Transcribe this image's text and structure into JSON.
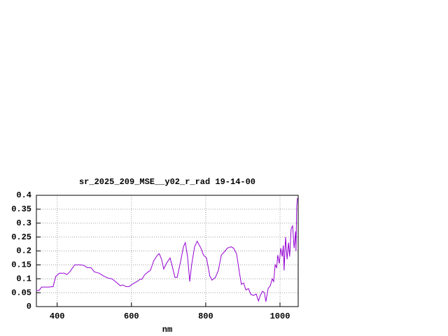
{
  "chart_data": {
    "type": "line",
    "title": "sr_2025_209_MSE__y02_r_rad 19-14-00",
    "x_label": "nm",
    "x": [
      343,
      351,
      358,
      377,
      389,
      396,
      406,
      419,
      426,
      434,
      447,
      462,
      472,
      481,
      491,
      500,
      513,
      525,
      538,
      547,
      557,
      570,
      577,
      585,
      594,
      604,
      615,
      623,
      628,
      636,
      645,
      651,
      660,
      670,
      675,
      681,
      687,
      694,
      704,
      709,
      717,
      723,
      732,
      740,
      745,
      751,
      757,
      762,
      770,
      777,
      787,
      794,
      802,
      811,
      817,
      826,
      834,
      842,
      849,
      858,
      868,
      875,
      883,
      891,
      896,
      902,
      908,
      915,
      921,
      928,
      936,
      942,
      947,
      953,
      958,
      962,
      968,
      974,
      979,
      983,
      987,
      991,
      994,
      998,
      1002,
      1006,
      1009,
      1011,
      1015,
      1019,
      1023,
      1026,
      1030,
      1034,
      1038,
      1042,
      1043,
      1045,
      1047
    ],
    "series": [
      {
        "color": "#9400d3",
        "values": [
          0.058,
          0.058,
          0.07,
          0.07,
          0.072,
          0.108,
          0.12,
          0.12,
          0.115,
          0.125,
          0.15,
          0.15,
          0.148,
          0.14,
          0.14,
          0.125,
          0.12,
          0.11,
          0.102,
          0.1,
          0.09,
          0.075,
          0.078,
          0.072,
          0.072,
          0.082,
          0.09,
          0.098,
          0.098,
          0.115,
          0.125,
          0.13,
          0.165,
          0.185,
          0.19,
          0.17,
          0.135,
          0.155,
          0.175,
          0.15,
          0.105,
          0.105,
          0.16,
          0.215,
          0.23,
          0.18,
          0.09,
          0.15,
          0.215,
          0.235,
          0.21,
          0.185,
          0.175,
          0.11,
          0.095,
          0.105,
          0.13,
          0.185,
          0.195,
          0.21,
          0.215,
          0.21,
          0.19,
          0.12,
          0.08,
          0.085,
          0.06,
          0.065,
          0.045,
          0.04,
          0.045,
          0.02,
          0.04,
          0.055,
          0.05,
          0.018,
          0.065,
          0.075,
          0.1,
          0.09,
          0.15,
          0.14,
          0.185,
          0.155,
          0.21,
          0.18,
          0.22,
          0.13,
          0.25,
          0.17,
          0.23,
          0.18,
          0.28,
          0.29,
          0.21,
          0.27,
          0.2,
          0.36,
          0.39
        ]
      }
    ],
    "xlim": [
      344,
      1049
    ],
    "xticks": [
      400,
      600,
      800,
      1000
    ],
    "ylim": [
      0,
      0.4
    ],
    "yticks": [
      0,
      0.05,
      0.1,
      0.15,
      0.2,
      0.25,
      0.3,
      0.35,
      0.4
    ],
    "grid": true
  }
}
